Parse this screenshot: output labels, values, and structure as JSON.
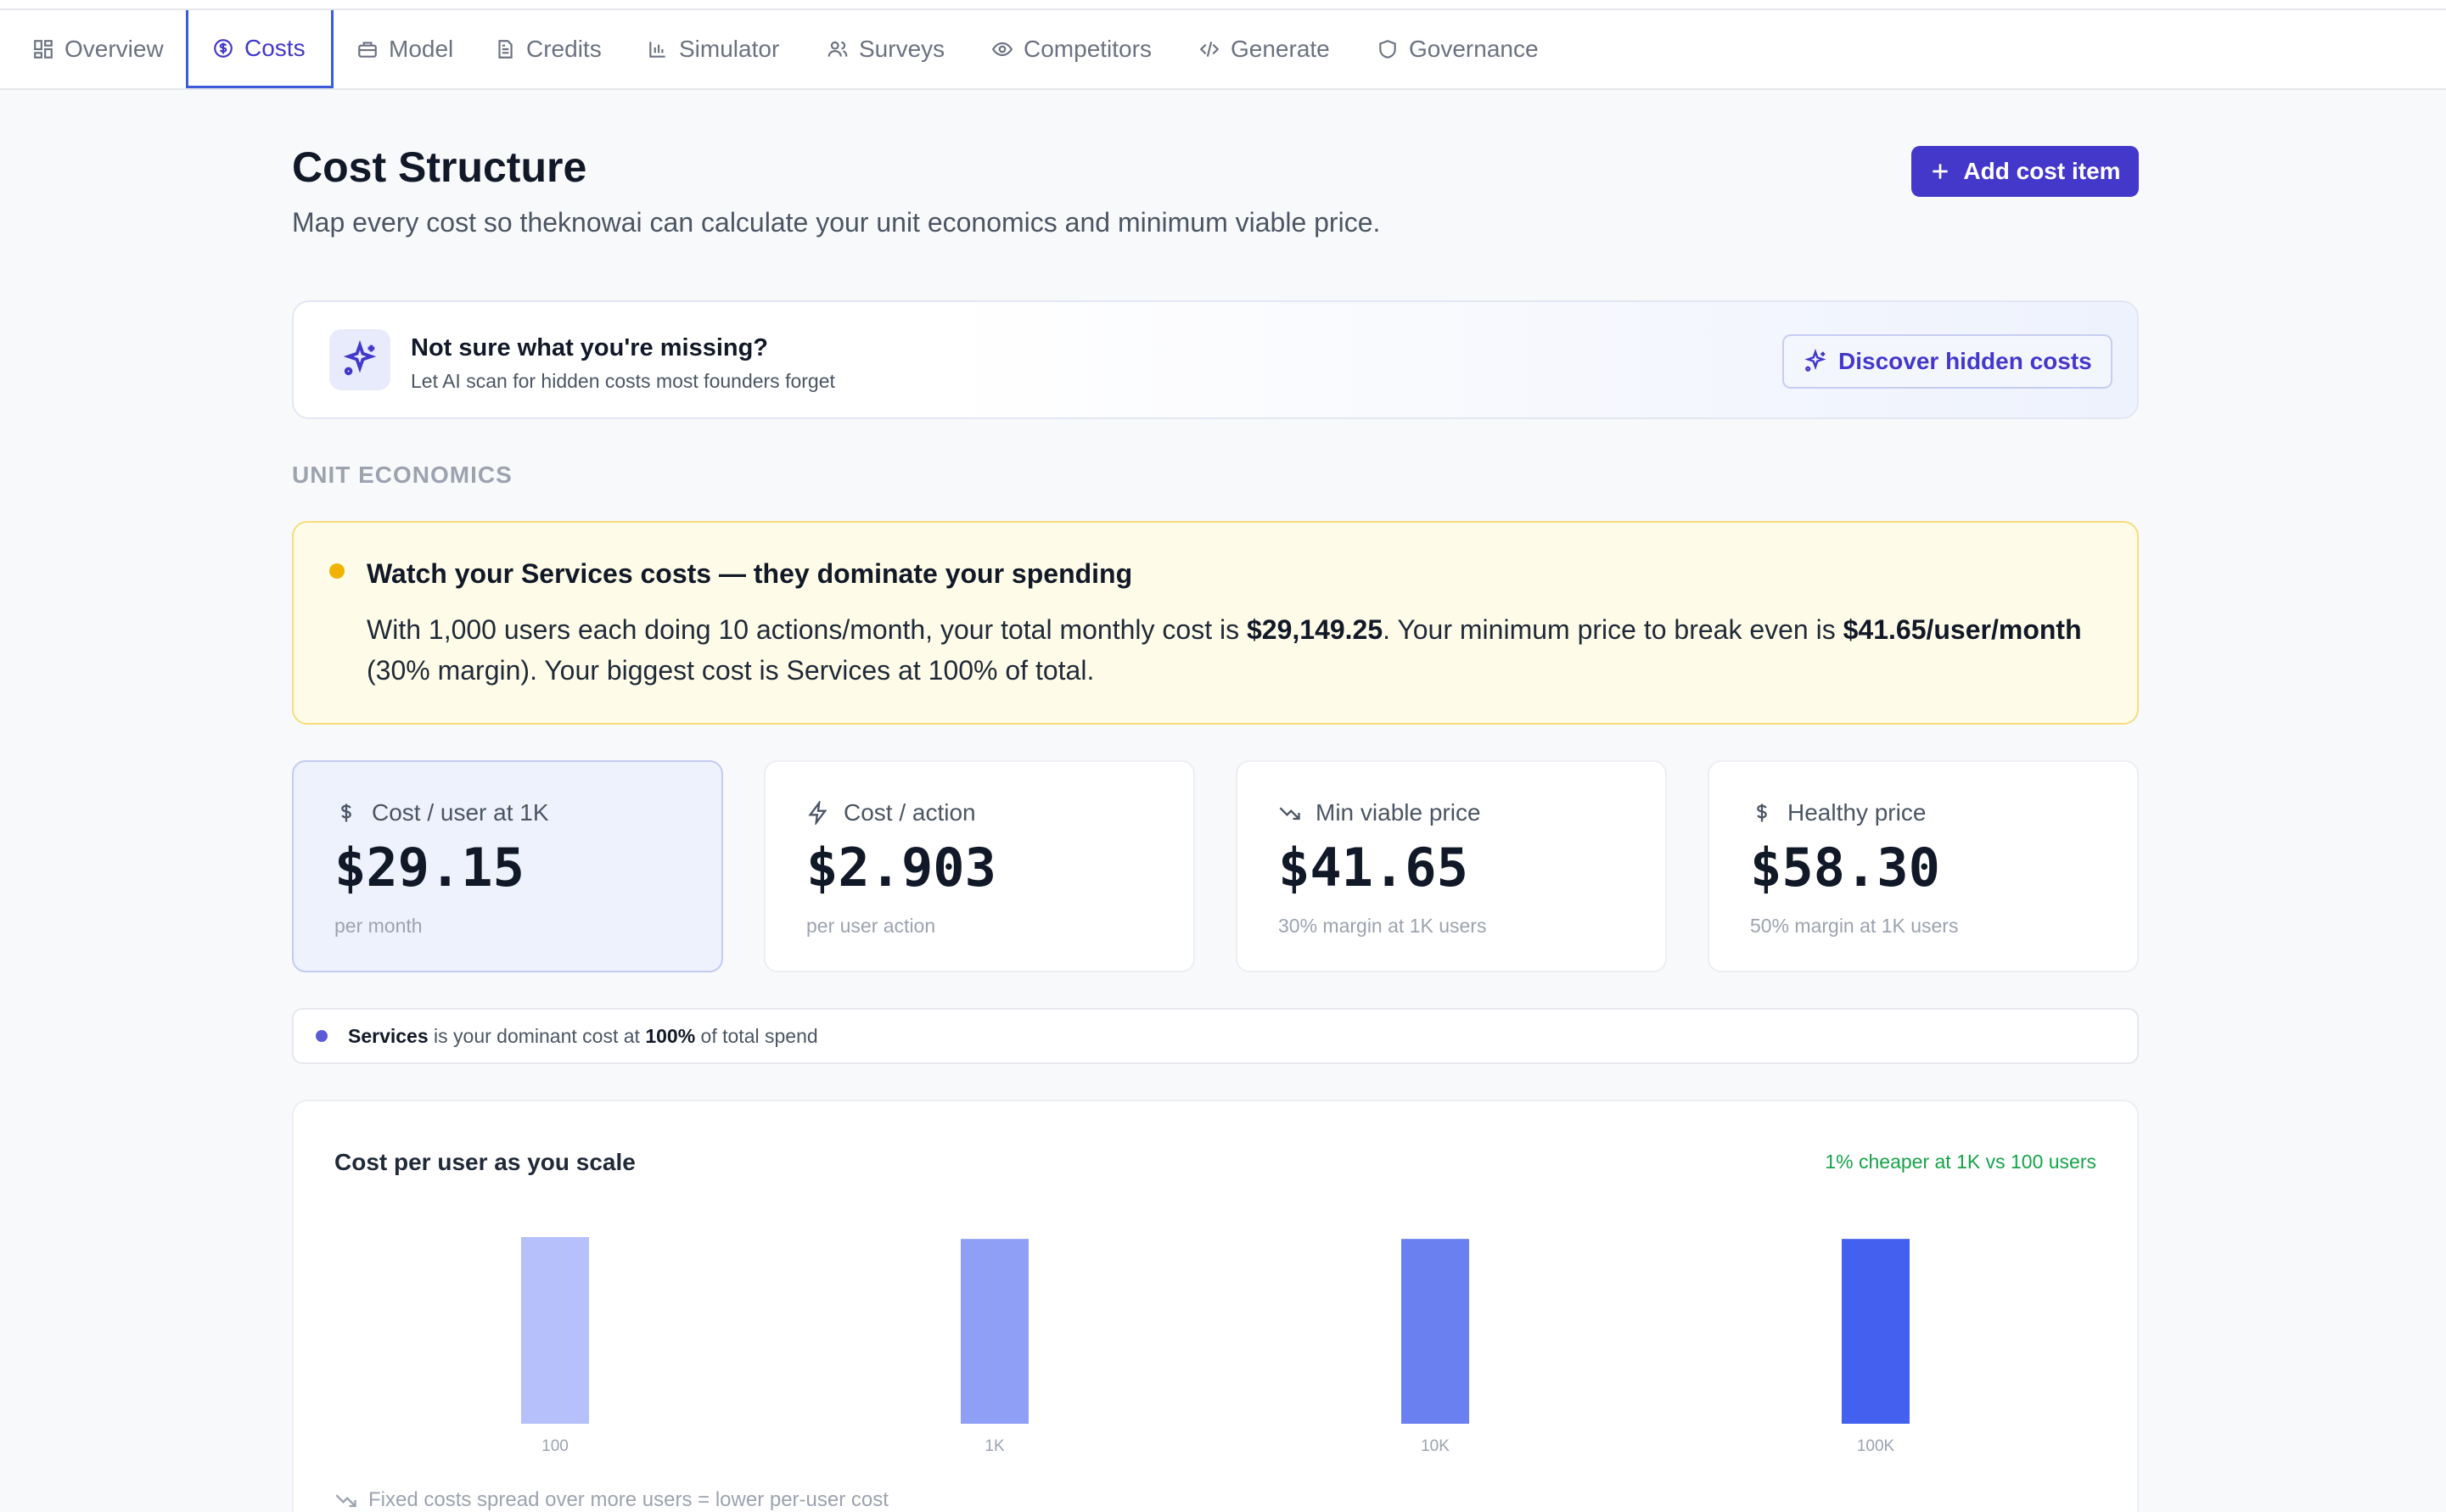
{
  "tabs": [
    {
      "label": "Overview",
      "icon": "grid-icon"
    },
    {
      "label": "Costs",
      "icon": "dollar-circle-icon"
    },
    {
      "label": "Model",
      "icon": "briefcase-icon"
    },
    {
      "label": "Credits",
      "icon": "document-icon"
    },
    {
      "label": "Simulator",
      "icon": "bar-chart-icon"
    },
    {
      "label": "Surveys",
      "icon": "users-icon"
    },
    {
      "label": "Competitors",
      "icon": "eye-icon"
    },
    {
      "label": "Generate",
      "icon": "code-icon"
    },
    {
      "label": "Governance",
      "icon": "shield-icon"
    }
  ],
  "active_tab": "Costs",
  "header": {
    "title": "Cost Structure",
    "subtitle": "Map every cost so theknowai can calculate your unit economics and minimum viable price.",
    "add_button": "Add cost item"
  },
  "ai_card": {
    "title": "Not sure what you're missing?",
    "subtitle": "Let AI scan for hidden costs most founders forget",
    "button": "Discover hidden costs"
  },
  "section_label": "UNIT ECONOMICS",
  "warning": {
    "title": "Watch your Services costs — they dominate your spending",
    "body_1": "With 1,000 users each doing 10 actions/month, your total monthly cost is ",
    "total_cost": "$29,149.25",
    "body_2": ". Your minimum price to break even is ",
    "min_price": "$41.65/user/month",
    "body_3": " (30% margin). Your biggest cost is Services at 100% of total.",
    "color": "#f0b400"
  },
  "metrics": [
    {
      "label": "Cost / user at 1K",
      "value": "$29.15",
      "sub": "per month",
      "icon": "dollar-icon"
    },
    {
      "label": "Cost / action",
      "value": "$2.903",
      "sub": "per user action",
      "icon": "lightning-icon"
    },
    {
      "label": "Min viable price",
      "value": "$41.65",
      "sub": "30% margin at 1K users",
      "icon": "trend-down-icon"
    },
    {
      "label": "Healthy price",
      "value": "$58.30",
      "sub": "50% margin at 1K users",
      "icon": "dollar-icon"
    }
  ],
  "dominant": {
    "category": "Services",
    "text_1": " is your dominant cost at ",
    "percent": "100%",
    "text_2": " of total spend"
  },
  "chart_card": {
    "title": "Cost per user as you scale",
    "note": "1% cheaper at 1K vs 100 users",
    "footnote": "Fixed costs spread over more users = lower per-user cost"
  },
  "chart_data": {
    "type": "bar",
    "title": "Cost per user as you scale",
    "categories": [
      "100",
      "1K",
      "10K",
      "100K"
    ],
    "values": [
      29.44,
      29.15,
      29.15,
      29.15
    ],
    "colors": [
      "#b6c0fa",
      "#8f9ff5",
      "#6a80f0",
      "#4361ee"
    ],
    "ylim": [
      0,
      29.44
    ]
  }
}
